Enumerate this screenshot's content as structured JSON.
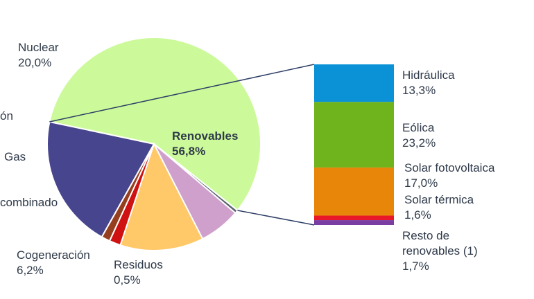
{
  "chart_data": [
    {
      "type": "pie",
      "title": "",
      "slices": [
        {
          "label": "Renovables",
          "value": 56.8,
          "value_label": "56,8%",
          "color": "#ccfa9a"
        },
        {
          "label": "Residuos",
          "value": 0.5,
          "value_label": "0,5%",
          "color": "#5a6270"
        },
        {
          "label": "Cogeneración",
          "value": 6.2,
          "value_label": "6,2%",
          "color": "#cfa0cb"
        },
        {
          "label": "…combinado",
          "value": 12.5,
          "value_label": "",
          "color": "#ffc868"
        },
        {
          "label": "Gas",
          "value": 1.7,
          "value_label": "",
          "color": "#cf1111"
        },
        {
          "label": "…ón",
          "value": 1.3,
          "value_label": "",
          "color": "#963f1e"
        },
        {
          "label": "Nuclear",
          "value": 20.0,
          "value_label": "20,0%",
          "color": "#48458f"
        }
      ]
    },
    {
      "type": "bar",
      "stacked": true,
      "title": "",
      "categories": [
        "Hidráulica",
        "Eólica",
        "Solar fotovoltaica",
        "Solar térmica",
        "Resto de renovables (1)"
      ],
      "values": [
        13.3,
        23.2,
        17.0,
        1.6,
        1.7
      ],
      "value_labels": [
        "13,3%",
        "23,2%",
        "17,0%",
        "1,6%",
        "1,7%"
      ],
      "colors": [
        "#0b92d6",
        "#6fb41d",
        "#e8860a",
        "#e8182a",
        "#7a3ea3"
      ]
    }
  ],
  "labels": {
    "renovables_name": "Renovables",
    "renovables_value": "56,8%",
    "nuclear_name": "Nuclear",
    "nuclear_value": "20,0%",
    "carbon_name": "ón",
    "gas_name": "Gas",
    "ciclo_name": "combinado",
    "cogeneracion_name": "Cogeneración",
    "cogeneracion_value": "6,2%",
    "residuos_name": "Residuos",
    "residuos_value": "0,5%",
    "hidraulica_name": "Hidráulica",
    "hidraulica_value": "13,3%",
    "eolica_name": "Eólica",
    "eolica_value": "23,2%",
    "fotovoltaica_name": "Solar fotovoltaica",
    "fotovoltaica_value": "17,0%",
    "termica_name": "Solar térmica",
    "termica_value": "1,6%",
    "resto_name_1": "Resto de",
    "resto_name_2": "renovables (1)",
    "resto_value": "1,7%"
  }
}
